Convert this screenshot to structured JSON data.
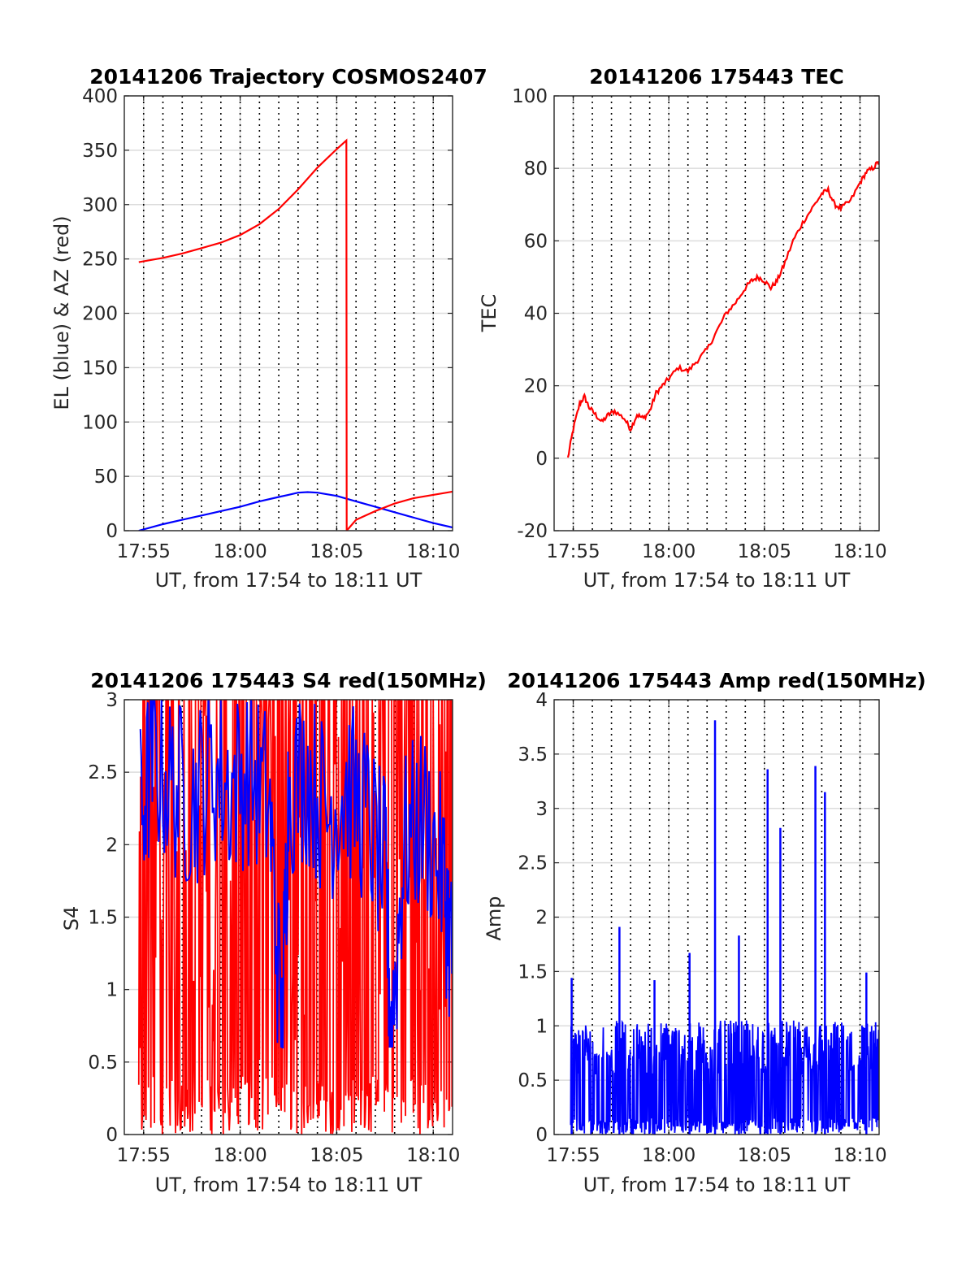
{
  "figure": {
    "background": "#ffffff",
    "colors": {
      "el": "#0000ff",
      "az": "#ff0000",
      "tec": "#ff0000",
      "s4_red": "#ff0000",
      "s4_blue": "#0000ff",
      "amp": "#0000ff"
    }
  },
  "chart_data": [
    {
      "type": "line",
      "title": "20141206 Trajectory COSMOS2407",
      "xlabel": "UT, from 17:54 to 18:11 UT",
      "ylabel": "EL (blue) & AZ (red)",
      "xlim": [
        "17:54:00",
        "18:11:00"
      ],
      "ylim": [
        0,
        400
      ],
      "xtick_labels": [
        "17:55",
        "18:00",
        "18:05",
        "18:10"
      ],
      "yticks": [
        "0",
        "50",
        "100",
        "150",
        "200",
        "250",
        "300",
        "350",
        "400"
      ],
      "grid": true,
      "vertical_dotted_lines_every_minutes": 1,
      "series": [
        {
          "color": "#0000ff",
          "x": [
            "17:54:45",
            "17:56:00",
            "17:57:00",
            "17:58:00",
            "17:59:00",
            "18:00:00",
            "18:01:00",
            "18:02:00",
            "18:02:30",
            "18:03:00",
            "18:03:30",
            "18:04:00",
            "18:05:00",
            "18:06:00",
            "18:07:00",
            "18:08:00",
            "18:09:00",
            "18:10:00",
            "18:11:00"
          ],
          "values": [
            0,
            6,
            10,
            14,
            18,
            22,
            27,
            31,
            33,
            35,
            35.5,
            35,
            32,
            27,
            22,
            17,
            12,
            7,
            3
          ]
        },
        {
          "color": "#ff0000",
          "x": [
            "17:54:45",
            "17:56:00",
            "17:57:00",
            "17:58:00",
            "17:59:00",
            "18:00:00",
            "18:01:00",
            "18:02:00",
            "18:03:00",
            "18:04:00",
            "18:05:00",
            "18:05:30",
            "18:05:31",
            "18:06:00",
            "18:07:00",
            "18:08:00",
            "18:09:00",
            "18:10:00",
            "18:11:00"
          ],
          "values": [
            247,
            251,
            255,
            260,
            265,
            272,
            282,
            296,
            314,
            334,
            351,
            359,
            0,
            10,
            18,
            25,
            30,
            33,
            36
          ]
        }
      ]
    },
    {
      "type": "line",
      "title": "20141206 175443 TEC",
      "xlabel": "UT, from 17:54 to 18:11 UT",
      "ylabel": "TEC",
      "xlim": [
        "17:54:00",
        "18:11:00"
      ],
      "ylim": [
        -20,
        100
      ],
      "xtick_labels": [
        "17:55",
        "18:00",
        "18:05",
        "18:10"
      ],
      "yticks": [
        "-20",
        "0",
        "20",
        "40",
        "60",
        "80",
        "100"
      ],
      "grid": true,
      "series": [
        {
          "color": "#ff0000",
          "x": [
            "17:54:43",
            "17:55:00",
            "17:55:20",
            "17:55:35",
            "17:55:50",
            "17:56:10",
            "17:56:30",
            "17:56:50",
            "17:57:10",
            "17:57:40",
            "17:58:00",
            "17:58:20",
            "17:58:40",
            "17:59:00",
            "17:59:20",
            "17:59:40",
            "18:00:00",
            "18:00:30",
            "18:01:00",
            "18:01:30",
            "18:02:00",
            "18:02:30",
            "18:03:00",
            "18:03:30",
            "18:04:00",
            "18:04:20",
            "18:04:40",
            "18:05:00",
            "18:05:20",
            "18:05:40",
            "18:06:00",
            "18:06:30",
            "18:07:00",
            "18:07:30",
            "18:08:00",
            "18:08:20",
            "18:08:40",
            "18:09:00",
            "18:09:30",
            "18:10:00",
            "18:10:20",
            "18:10:40",
            "18:11:00"
          ],
          "values": [
            0,
            8,
            15,
            17,
            14,
            12,
            10,
            12,
            13,
            11,
            8,
            12,
            11,
            13,
            18,
            20,
            22,
            25,
            24,
            27,
            30,
            35,
            40,
            43,
            47,
            49,
            50,
            49,
            47,
            49,
            53,
            60,
            65,
            69,
            73,
            74,
            70,
            69,
            71,
            76,
            79,
            80,
            82
          ]
        }
      ]
    },
    {
      "type": "line",
      "title": "20141206 175443 S4 red(150MHz)",
      "xlabel": "UT, from 17:54 to 18:11 UT",
      "ylabel": "S4",
      "xlim": [
        "17:54:00",
        "18:11:00"
      ],
      "ylim": [
        0,
        3
      ],
      "xtick_labels": [
        "17:55",
        "18:00",
        "18:05",
        "18:10"
      ],
      "yticks": [
        "0",
        "0.5",
        "1",
        "1.5",
        "2",
        "2.5",
        "3"
      ],
      "grid": true,
      "series": [
        {
          "color": "#ff0000",
          "x_range": [
            "17:54:45",
            "18:11:00"
          ],
          "envelope": {
            "min": 0,
            "max": 3
          },
          "note_values": "dense noise filling 0 to 3"
        },
        {
          "color": "#0000ff",
          "x": [
            "17:54:50",
            "17:55:30",
            "17:56:30",
            "17:57:30",
            "17:58:30",
            "17:59:30",
            "18:00:30",
            "18:01:30",
            "18:02:10",
            "18:02:30",
            "18:03:30",
            "18:04:30",
            "18:05:30",
            "18:06:30",
            "18:07:30",
            "18:07:50",
            "18:08:30",
            "18:09:30",
            "18:10:30",
            "18:11:00"
          ],
          "values": [
            2.2,
            2.6,
            2.4,
            2.3,
            2.5,
            2.4,
            2.5,
            2.3,
            0.65,
            2.4,
            2.5,
            2.2,
            2.4,
            2.2,
            1.8,
            0.7,
            2.0,
            2.2,
            1.8,
            1.2
          ]
        }
      ]
    },
    {
      "type": "line",
      "title": "20141206 175443 Amp red(150MHz)",
      "xlabel": "UT, from 17:54 to 18:11 UT",
      "ylabel": "Amp",
      "xlim": [
        "17:54:00",
        "18:11:00"
      ],
      "ylim": [
        0,
        4
      ],
      "xtick_labels": [
        "17:55",
        "18:00",
        "18:05",
        "18:10"
      ],
      "yticks": [
        "0",
        "0.5",
        "1",
        "1.5",
        "2",
        "2.5",
        "3",
        "3.5",
        "4"
      ],
      "grid": true,
      "series": [
        {
          "color": "#0000ff",
          "spikes": {
            "x": [
              "17:54:55",
              "17:57:25",
              "17:59:15",
              "18:01:05",
              "18:02:25",
              "18:03:40",
              "18:05:10",
              "18:05:50",
              "18:07:40",
              "18:08:10",
              "18:10:20"
            ],
            "values": [
              1.44,
              1.91,
              1.42,
              1.67,
              3.81,
              1.83,
              3.36,
              2.82,
              3.39,
              3.15,
              1.49
            ]
          },
          "baseline_range": [
            0,
            1.1
          ]
        }
      ]
    }
  ]
}
